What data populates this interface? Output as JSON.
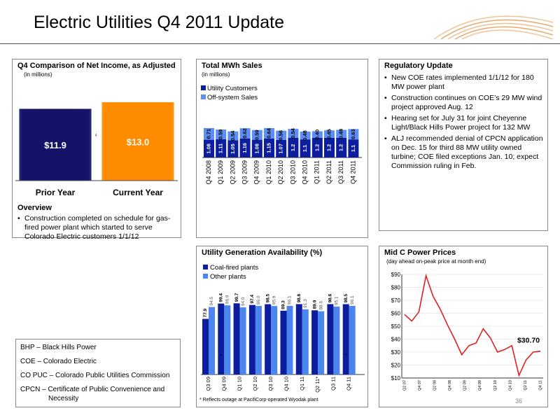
{
  "page": {
    "title": "Electric Utilities Q4 2011 Update",
    "page_number": "36"
  },
  "net_income": {
    "title": "Q4 Comparison of Net Income, as Adjusted",
    "subtitle": "(in millions)",
    "overview_heading": "Overview",
    "overview_items": [
      "Construction  completed on schedule for gas-fired power plant  which started to serve Colorado Electric customers 1/1/12"
    ],
    "footnote_marker": "4",
    "colors": {
      "prior": "#141469",
      "current": "#ff8c00"
    },
    "chart_data": {
      "type": "bar",
      "categories": [
        "Prior Year",
        "Current Year"
      ],
      "values": [
        11.9,
        13.0
      ],
      "value_labels": [
        "$11.9",
        "$13.0"
      ]
    }
  },
  "mwh_sales": {
    "title": "Total MWh Sales",
    "subtitle": "(in millions)",
    "colors": {
      "utility": "#0c1e9e",
      "offsystem": "#5c8ef5"
    },
    "chart_data": {
      "type": "bar",
      "stacked": true,
      "categories": [
        "Q4 2008",
        "Q1 2009",
        "Q2 2009",
        "Q3 2009",
        "Q4 2009",
        "Q1 2010",
        "Q2 2010",
        "Q3 2010",
        "Q4 2010",
        "Q1 2011",
        "Q2 2011",
        "Q3 2011",
        "Q4 2011"
      ],
      "series": [
        {
          "name": "Utility Customers",
          "values": [
            1.08,
            1.11,
            1.05,
            1.16,
            1.08,
            1.15,
            1.07,
            1.2,
            1.1,
            1.2,
            1.2,
            1.2,
            1.1
          ]
        },
        {
          "name": "Off-system Sales",
          "values": [
            0.71,
            0.59,
            0.54,
            0.62,
            0.59,
            0.64,
            0.56,
            0.54,
            0.48,
            0.4,
            0.45,
            0.48,
            0.63
          ]
        }
      ],
      "utility_labels": [
        "1.08",
        "1.11",
        "1.05",
        "1.16",
        "1.08",
        "1.15",
        "1.07",
        "1.2",
        "1.1",
        "1.2",
        "1.2",
        "1.2",
        "1.1"
      ],
      "offsystem_labels": [
        "0.71",
        "0.59",
        "0.54",
        "0.62",
        "0.59",
        "0.64",
        "0.56",
        "0.54",
        "0.48",
        "0.40",
        "0.45",
        "0.48",
        "0.63"
      ]
    }
  },
  "regulatory": {
    "title": "Regulatory Update",
    "items": [
      "New COE rates implemented 1/1/12 for 180 MW power plant",
      "Construction continues on COE’s 29 MW wind project approved Aug. 12",
      "Hearing set for July 31 for joint Cheyenne Light/Black Hills Power project for 132 MW",
      "ALJ recommended denial of CPCN application on Dec. 15 for third 88 MW utility owned turbine; COE filed exceptions Jan. 10; expect Commission ruling in Feb."
    ]
  },
  "availability": {
    "title": "Utility Generation Availability (%)",
    "footnote": "* Reflects outage at PacifiCorp-operated Wyodak plant",
    "star_marker": "*",
    "colors": {
      "coal": "#0c1e9e",
      "other": "#4a86ee"
    },
    "chart_data": {
      "type": "bar",
      "categories": [
        "Q3 09",
        "Q4 09",
        "Q1 10",
        "Q2 10",
        "Q3 10",
        "Q4 10",
        "Q1 11",
        "Q2 11*",
        "Q3 11",
        "Q4 11"
      ],
      "series": [
        {
          "name": "Coal-fired plants",
          "values": [
            77.9,
            99.4,
            99.7,
            97.4,
            98.5,
            89.3,
            98.6,
            89.9,
            98.6,
            98.5
          ]
        },
        {
          "name": "Other plants",
          "values": [
            94.5,
            96.9,
            94.0,
            96.0,
            95.9,
            96.1,
            91.3,
            88.6,
            95.1,
            96.1
          ]
        }
      ],
      "coal_labels": [
        "77.9",
        "99.4",
        "99.7",
        "97.4",
        "98.5",
        "89.3",
        "98.6",
        "89.9",
        "98.6",
        "98.5"
      ],
      "other_labels": [
        "94.5",
        "96.9",
        "94.0",
        "96.0",
        "95.9",
        "96.1",
        "91.3",
        "88.6",
        "95.1",
        "96.1"
      ]
    }
  },
  "midc": {
    "title": "Mid C Power Prices",
    "subtitle": "(day ahead on-peak price at month end)",
    "callout": "$30.70",
    "line_color": "#e02020",
    "chart_data": {
      "type": "line",
      "ylim": [
        10,
        90
      ],
      "y_ticks": [
        "$10",
        "$20",
        "$30",
        "$40",
        "$50",
        "$60",
        "$70",
        "$80",
        "$90"
      ],
      "x_tick_labels": [
        "Q2 07",
        "Q4 07",
        "Q2 08",
        "Q4 08",
        "Q2 09",
        "Q4 09",
        "Q2 10",
        "Q4 10",
        "Q2 11",
        "Q4 11"
      ],
      "values": [
        59,
        54,
        61,
        89,
        73,
        63,
        51,
        40,
        28,
        35,
        37,
        48,
        41,
        30,
        32,
        35,
        12,
        24,
        30,
        30.7
      ]
    }
  },
  "abbreviations": [
    "BHP – Black Hills Power",
    "COE – Colorado Electric",
    "CO PUC – Colorado Public Utilities Commission",
    "CPCN – Certificate of Public Convenience and",
    "Necessity"
  ]
}
